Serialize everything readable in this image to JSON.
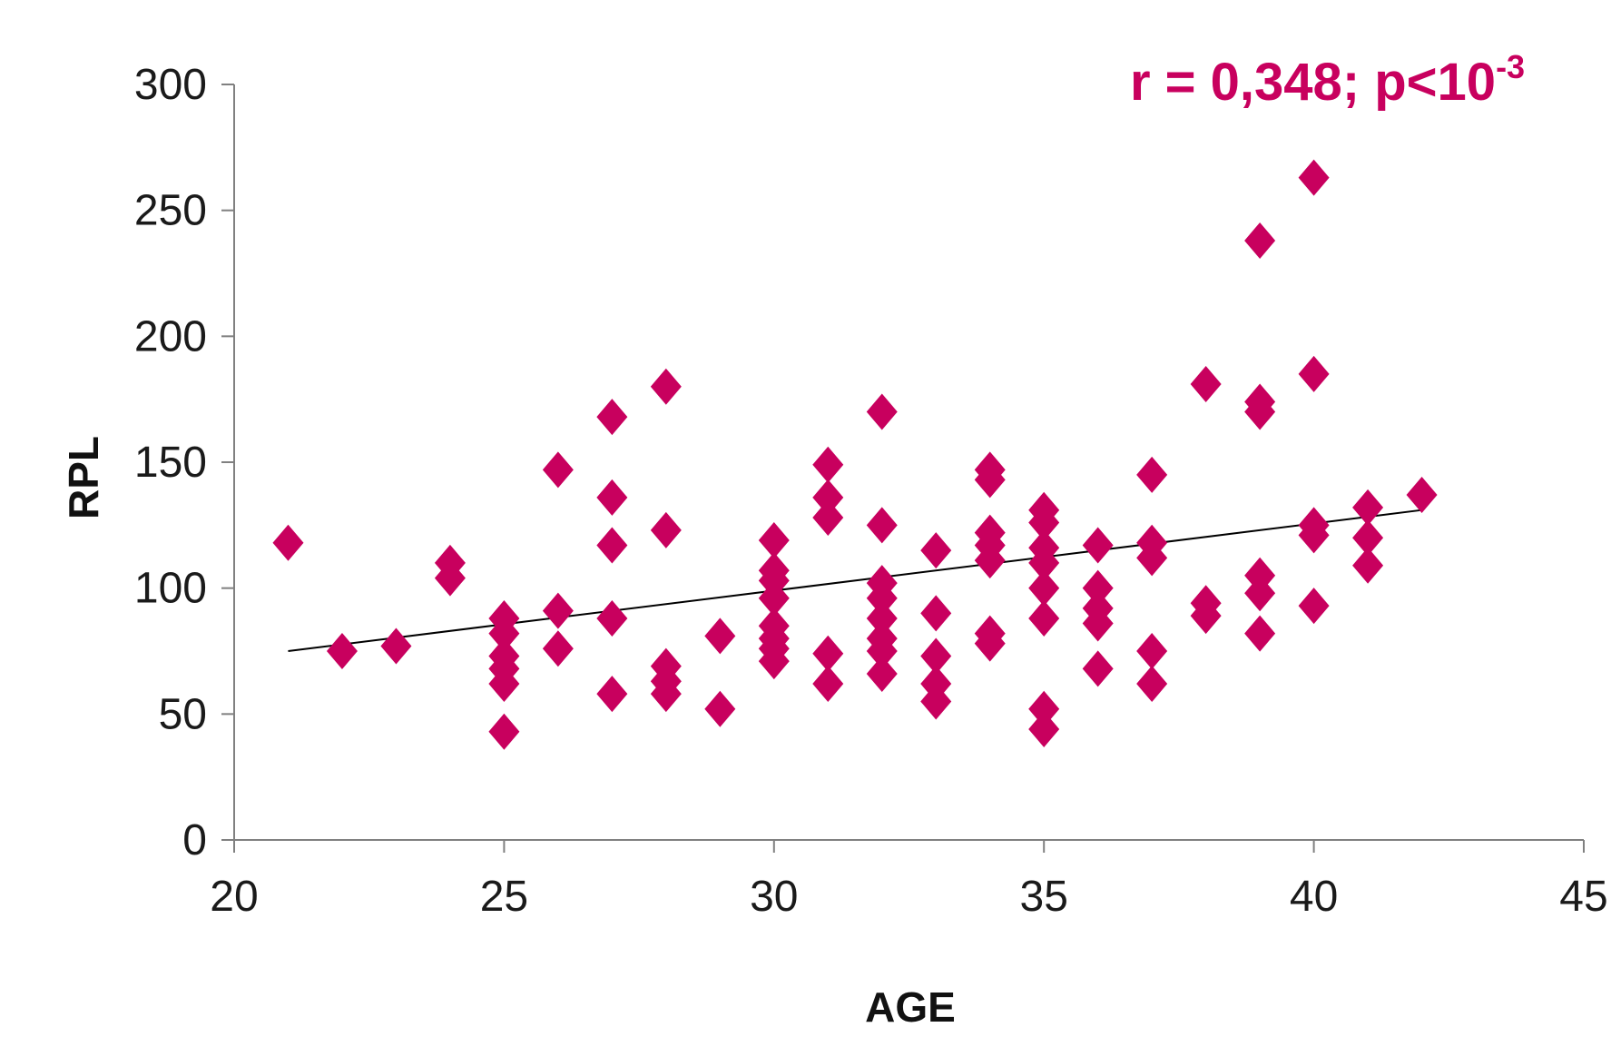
{
  "colors": {
    "marker": "#c8005e",
    "axis": "#808080",
    "trendline": "#000000",
    "annotation": "#c8005e"
  },
  "chart_data": {
    "type": "scatter",
    "title": "",
    "xlabel": "AGE",
    "ylabel": "RPL",
    "xlim": [
      20,
      45
    ],
    "ylim": [
      0,
      300
    ],
    "x_ticks": [
      "20",
      "25",
      "30",
      "35",
      "40",
      "45"
    ],
    "y_ticks": [
      "0",
      "50",
      "100",
      "150",
      "200",
      "250",
      "300"
    ],
    "grid": false,
    "legend": "none",
    "marker": "diamond",
    "annotation": {
      "text": "r = 0,348; p<10",
      "superscript": "-3",
      "placement": "top-right"
    },
    "trendline": {
      "x": [
        21,
        42
      ],
      "y": [
        75,
        131
      ]
    },
    "series": [
      {
        "points": [
          [
            21,
            118
          ],
          [
            22,
            75
          ],
          [
            23,
            77
          ],
          [
            24,
            110
          ],
          [
            24,
            104
          ],
          [
            25,
            88
          ],
          [
            25,
            82
          ],
          [
            25,
            73
          ],
          [
            25,
            68
          ],
          [
            25,
            62
          ],
          [
            25,
            43
          ],
          [
            26,
            147
          ],
          [
            26,
            91
          ],
          [
            26,
            76
          ],
          [
            27,
            168
          ],
          [
            27,
            136
          ],
          [
            27,
            117
          ],
          [
            27,
            88
          ],
          [
            27,
            58
          ],
          [
            28,
            180
          ],
          [
            28,
            123
          ],
          [
            28,
            69
          ],
          [
            28,
            63
          ],
          [
            28,
            58
          ],
          [
            29,
            81
          ],
          [
            29,
            52
          ],
          [
            30,
            119
          ],
          [
            30,
            107
          ],
          [
            30,
            103
          ],
          [
            30,
            96
          ],
          [
            30,
            85
          ],
          [
            30,
            80
          ],
          [
            30,
            76
          ],
          [
            30,
            71
          ],
          [
            31,
            149
          ],
          [
            31,
            136
          ],
          [
            31,
            128
          ],
          [
            31,
            74
          ],
          [
            31,
            62
          ],
          [
            32,
            170
          ],
          [
            32,
            125
          ],
          [
            32,
            102
          ],
          [
            32,
            96
          ],
          [
            32,
            88
          ],
          [
            32,
            80
          ],
          [
            32,
            75
          ],
          [
            32,
            66
          ],
          [
            33,
            115
          ],
          [
            33,
            90
          ],
          [
            33,
            73
          ],
          [
            33,
            62
          ],
          [
            33,
            55
          ],
          [
            34,
            147
          ],
          [
            34,
            143
          ],
          [
            34,
            122
          ],
          [
            34,
            117
          ],
          [
            34,
            111
          ],
          [
            34,
            82
          ],
          [
            34,
            78
          ],
          [
            35,
            131
          ],
          [
            35,
            126
          ],
          [
            35,
            116
          ],
          [
            35,
            110
          ],
          [
            35,
            100
          ],
          [
            35,
            88
          ],
          [
            35,
            52
          ],
          [
            35,
            44
          ],
          [
            36,
            117
          ],
          [
            36,
            100
          ],
          [
            36,
            92
          ],
          [
            36,
            86
          ],
          [
            36,
            68
          ],
          [
            37,
            145
          ],
          [
            37,
            118
          ],
          [
            37,
            112
          ],
          [
            37,
            75
          ],
          [
            37,
            62
          ],
          [
            38,
            181
          ],
          [
            38,
            94
          ],
          [
            38,
            89
          ],
          [
            39,
            238
          ],
          [
            39,
            174
          ],
          [
            39,
            170
          ],
          [
            39,
            105
          ],
          [
            39,
            98
          ],
          [
            39,
            82
          ],
          [
            40,
            263
          ],
          [
            40,
            185
          ],
          [
            40,
            125
          ],
          [
            40,
            121
          ],
          [
            40,
            93
          ],
          [
            41,
            132
          ],
          [
            41,
            120
          ],
          [
            41,
            109
          ],
          [
            42,
            137
          ]
        ]
      }
    ]
  }
}
